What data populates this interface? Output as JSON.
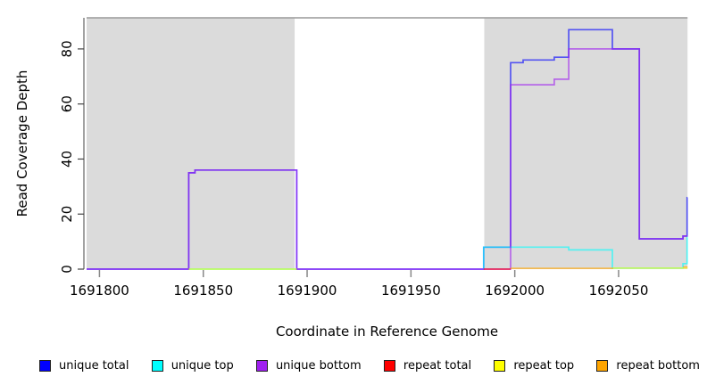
{
  "chart_data": {
    "type": "line",
    "title": "",
    "xlabel": "Coordinate in Reference Genome",
    "ylabel": "Read Coverage Depth",
    "xlim": [
      1691793.8,
      1692083.2
    ],
    "ylim": [
      0,
      91.3
    ],
    "x_ticks": [
      1691800,
      1691850,
      1691900,
      1691950,
      1692000,
      1692050
    ],
    "y_ticks": [
      0,
      20,
      40,
      60,
      80
    ],
    "grid": false,
    "plot_background": "#ffffff",
    "shaded_region_color": "#dbdbdb",
    "top_border_color": "#999999",
    "shaded_regions": [
      {
        "x0": 1691793.8,
        "x1": 1691894
      },
      {
        "x0": 1691985.3,
        "x1": 1692083.2
      }
    ],
    "line_opacity": 0.62,
    "series": [
      {
        "name": "unique total",
        "color": "#0000FF",
        "segments": [
          [
            [
              1691793.8,
              0
            ],
            [
              1691843,
              0
            ],
            [
              1691843,
              35
            ],
            [
              1691846,
              35
            ],
            [
              1691846,
              36
            ],
            [
              1691895,
              36
            ],
            [
              1691895,
              0
            ],
            [
              1691985,
              0
            ],
            [
              1691985,
              8
            ],
            [
              1691998,
              8
            ],
            [
              1691998,
              75
            ],
            [
              1692004,
              75
            ],
            [
              1692004,
              76
            ],
            [
              1692019,
              76
            ],
            [
              1692019,
              77
            ],
            [
              1692026,
              77
            ],
            [
              1692026,
              87
            ],
            [
              1692047,
              87
            ],
            [
              1692047,
              80
            ],
            [
              1692060,
              80
            ],
            [
              1692060,
              11
            ],
            [
              1692081,
              11
            ],
            [
              1692081,
              12
            ],
            [
              1692083,
              12
            ],
            [
              1692083,
              26
            ],
            [
              1692083.2,
              26
            ]
          ]
        ]
      },
      {
        "name": "unique top",
        "color": "#00FFFF",
        "segments": [
          [
            [
              1691843,
              0
            ],
            [
              1691895,
              0
            ]
          ],
          [
            [
              1691985,
              0
            ],
            [
              1691985,
              8
            ],
            [
              1692026,
              8
            ],
            [
              1692026,
              7
            ],
            [
              1692047,
              7
            ],
            [
              1692047,
              0.4
            ],
            [
              1692081,
              0.4
            ],
            [
              1692081,
              2
            ],
            [
              1692083,
              2
            ],
            [
              1692083,
              11.5
            ],
            [
              1692083.2,
              11.5
            ]
          ]
        ]
      },
      {
        "name": "unique bottom",
        "color": "#A020F0",
        "segments": [
          [
            [
              1691793.8,
              0
            ],
            [
              1691843,
              0
            ],
            [
              1691843,
              35
            ],
            [
              1691846,
              35
            ],
            [
              1691846,
              36
            ],
            [
              1691895,
              36
            ],
            [
              1691895,
              0
            ],
            [
              1691998,
              0
            ],
            [
              1691998,
              67
            ],
            [
              1692019,
              67
            ],
            [
              1692019,
              69
            ],
            [
              1692026,
              69
            ],
            [
              1692026,
              80
            ],
            [
              1692060,
              80
            ],
            [
              1692060,
              11
            ],
            [
              1692081,
              11
            ],
            [
              1692081,
              12
            ],
            [
              1692083.2,
              12
            ]
          ]
        ]
      },
      {
        "name": "repeat total",
        "color": "#FF0000",
        "segments": [
          [
            [
              1691985,
              0
            ],
            [
              1691998,
              0
            ]
          ]
        ]
      },
      {
        "name": "repeat top",
        "color": "#FFFF00",
        "segments": [
          [
            [
              1691843,
              0
            ],
            [
              1691895,
              0
            ]
          ],
          [
            [
              1692047,
              0.4
            ],
            [
              1692083.2,
              0.4
            ]
          ]
        ]
      },
      {
        "name": "repeat bottom",
        "color": "#FFA500",
        "segments": [
          [
            [
              1691998,
              0.3
            ],
            [
              1692047,
              0.3
            ],
            [
              1692047,
              0
            ]
          ],
          [
            [
              1692081,
              0.8
            ],
            [
              1692083.2,
              0.8
            ]
          ]
        ]
      }
    ],
    "legend": {
      "position": "bottom",
      "entries": [
        "unique total",
        "unique top",
        "unique bottom",
        "repeat total",
        "repeat top",
        "repeat bottom"
      ]
    }
  }
}
